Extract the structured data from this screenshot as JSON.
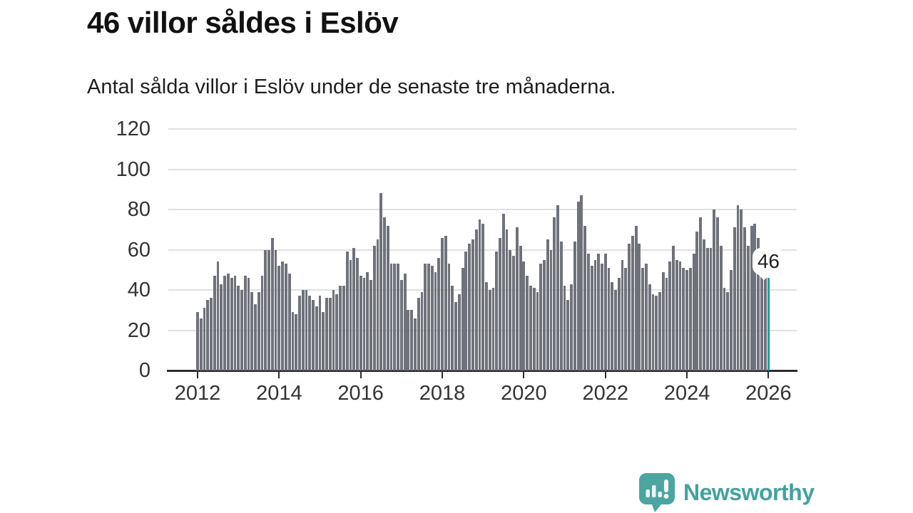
{
  "header": {
    "title": "46 villor såldes i Eslöv",
    "subtitle": "Antal sålda villor i Eslöv under de senaste tre månaderna."
  },
  "chart_data": {
    "type": "bar",
    "title": "46 villor såldes i Eslöv",
    "subtitle": "Antal sålda villor i Eslöv under de senaste tre månaderna.",
    "frequency": "monthly",
    "x_start": "2012-01",
    "x_end": "2026-01",
    "values": [
      29,
      26,
      31,
      35,
      36,
      47,
      54,
      43,
      47,
      48,
      46,
      47,
      42,
      40,
      47,
      46,
      39,
      33,
      39,
      47,
      60,
      60,
      66,
      60,
      52,
      54,
      53,
      48,
      29,
      28,
      37,
      40,
      40,
      37,
      35,
      32,
      37,
      29,
      36,
      36,
      40,
      38,
      42,
      42,
      59,
      55,
      61,
      56,
      47,
      46,
      49,
      45,
      62,
      65,
      88,
      76,
      72,
      53,
      53,
      53,
      45,
      48,
      30,
      30,
      26,
      36,
      39,
      53,
      53,
      52,
      49,
      56,
      66,
      67,
      53,
      42,
      34,
      38,
      51,
      59,
      63,
      65,
      70,
      75,
      73,
      44,
      40,
      41,
      59,
      66,
      78,
      70,
      60,
      57,
      71,
      62,
      54,
      47,
      42,
      41,
      39,
      53,
      55,
      65,
      60,
      76,
      82,
      64,
      42,
      35,
      43,
      64,
      84,
      87,
      72,
      58,
      52,
      55,
      58,
      53,
      58,
      51,
      44,
      40,
      46,
      55,
      51,
      63,
      67,
      72,
      63,
      51,
      53,
      43,
      38,
      37,
      39,
      49,
      46,
      54,
      62,
      55,
      54,
      51,
      50,
      51,
      58,
      69,
      76,
      65,
      61,
      61,
      80,
      76,
      62,
      41,
      39,
      50,
      71,
      82,
      80,
      71,
      62,
      72,
      73,
      66,
      51,
      48,
      46
    ],
    "highlight": {
      "index": 168,
      "value": 46,
      "label": "46"
    },
    "xticks": [
      2012,
      2014,
      2016,
      2018,
      2020,
      2022,
      2024,
      2026
    ],
    "yticks": [
      0,
      20,
      40,
      60,
      80,
      100,
      120
    ],
    "ylim": [
      0,
      120
    ],
    "xlabel": "",
    "ylabel": "",
    "legend": "none",
    "grid": "horizontal"
  },
  "annotation": {
    "label": "46"
  },
  "footer": {
    "brand": "Newsworthy"
  },
  "colors": {
    "background": "#ffffff",
    "bar": "#6f727a",
    "highlight": "#00a49c",
    "grid": "#e0e0e0",
    "axis": "#2d2d2d",
    "tick_label": "#333333",
    "title": "#111111",
    "logo": "#41a3a0"
  }
}
